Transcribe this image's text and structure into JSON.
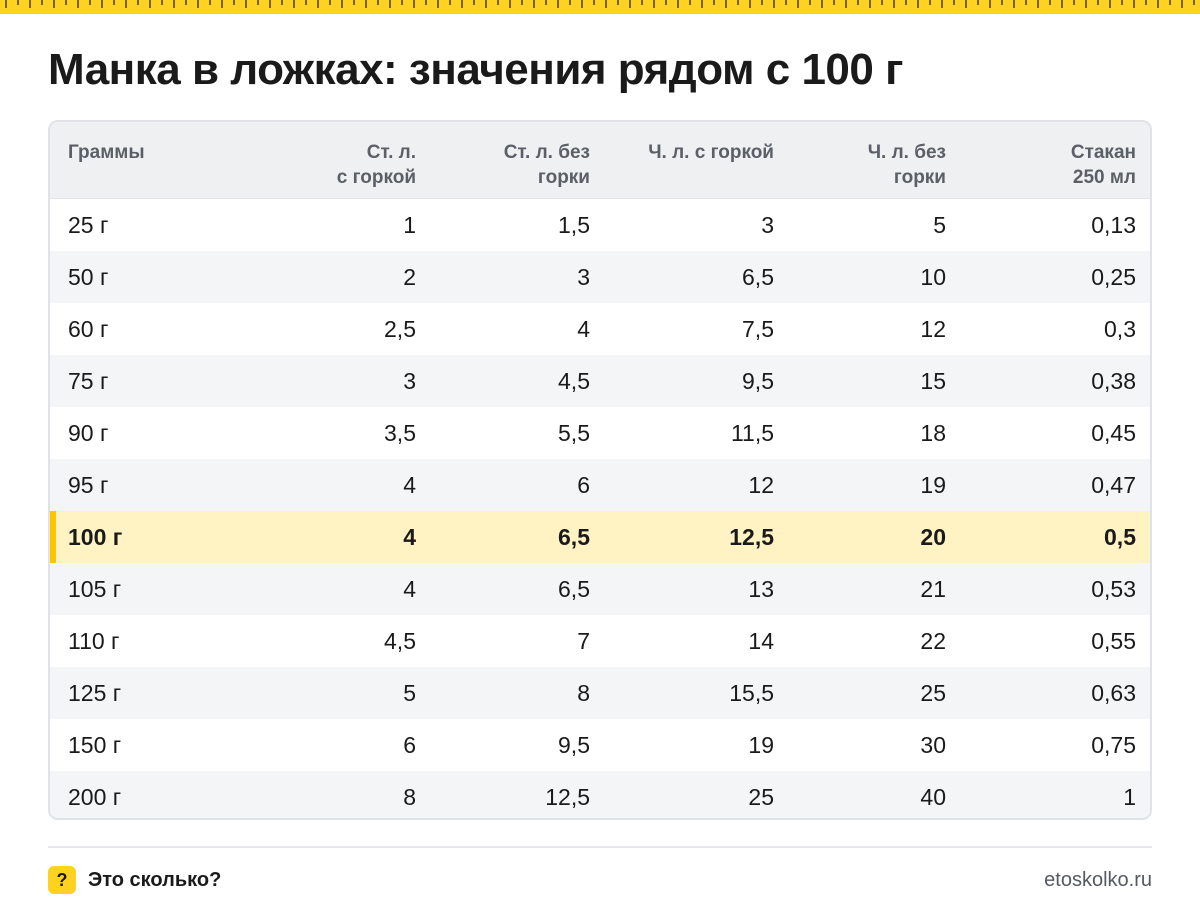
{
  "title": "Манка в ложках: значения рядом с 100 г",
  "colors": {
    "accent": "#ffd21f",
    "highlight_row": "#fff3c4",
    "highlight_bar": "#ffc400",
    "header_bg": "#eef0f2",
    "alt_row": "#f4f5f7"
  },
  "chart_data": {
    "type": "table",
    "columns": [
      {
        "line1": "Граммы",
        "line2": ""
      },
      {
        "line1": "Ст. л.",
        "line2": "с горкой"
      },
      {
        "line1": "Ст. л. без",
        "line2": "горки"
      },
      {
        "line1": "Ч. л. с горкой",
        "line2": ""
      },
      {
        "line1": "Ч. л. без",
        "line2": "горки"
      },
      {
        "line1": "Стакан",
        "line2": "250 мл"
      }
    ],
    "rows": [
      [
        "25 г",
        "1",
        "1,5",
        "3",
        "5",
        "0,13"
      ],
      [
        "50 г",
        "2",
        "3",
        "6,5",
        "10",
        "0,25"
      ],
      [
        "60 г",
        "2,5",
        "4",
        "7,5",
        "12",
        "0,3"
      ],
      [
        "75 г",
        "3",
        "4,5",
        "9,5",
        "15",
        "0,38"
      ],
      [
        "90 г",
        "3,5",
        "5,5",
        "11,5",
        "18",
        "0,45"
      ],
      [
        "95 г",
        "4",
        "6",
        "12",
        "19",
        "0,47"
      ],
      [
        "100 г",
        "4",
        "6,5",
        "12,5",
        "20",
        "0,5"
      ],
      [
        "105 г",
        "4",
        "6,5",
        "13",
        "21",
        "0,53"
      ],
      [
        "110 г",
        "4,5",
        "7",
        "14",
        "22",
        "0,55"
      ],
      [
        "125 г",
        "5",
        "8",
        "15,5",
        "25",
        "0,63"
      ],
      [
        "150 г",
        "6",
        "9,5",
        "19",
        "30",
        "0,75"
      ],
      [
        "200 г",
        "8",
        "12,5",
        "25",
        "40",
        "1"
      ]
    ],
    "highlighted_row": 6
  },
  "footer": {
    "brand_icon": "?",
    "brand_name": "Это сколько?",
    "site": "etoskolko.ru"
  }
}
